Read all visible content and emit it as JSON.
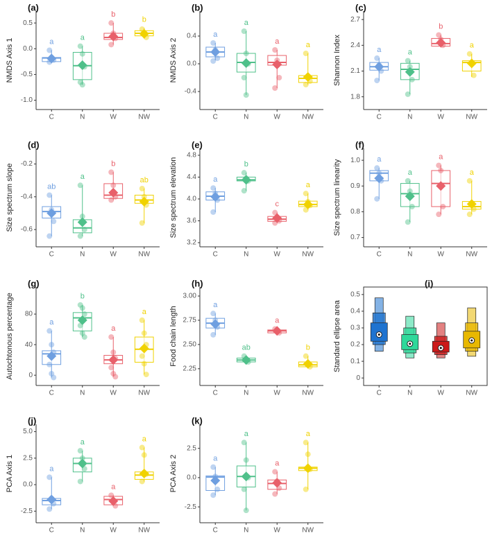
{
  "chart_data": [
    {
      "type": "box",
      "panel": "(a)",
      "ylabel": "NMDS Axis 1",
      "categories": [
        "C",
        "N",
        "W",
        "NW"
      ],
      "colors": [
        "#6f9fe0",
        "#4fc08a",
        "#e8606a",
        "#f0d200"
      ],
      "ylim": [
        -1.1,
        0.65
      ],
      "yticks": [
        {
          "value": -1.0,
          "label": "-1.0"
        },
        {
          "value": -0.5,
          "label": "-0.5"
        },
        {
          "value": 0,
          "label": "0.0"
        },
        {
          "value": 0.5,
          "label": "0.5"
        }
      ],
      "boxes": [
        {
          "min": -0.28,
          "q1": -0.25,
          "median": -0.18,
          "q3": -0.17,
          "max": -0.03,
          "mean": -0.19,
          "letter": "a",
          "points": [
            -0.03,
            -0.17,
            -0.22,
            -0.26
          ]
        },
        {
          "min": -0.7,
          "q1": -0.6,
          "median": -0.33,
          "q3": -0.07,
          "max": 0.05,
          "mean": -0.32,
          "letter": "a",
          "points": [
            0.05,
            -0.1,
            -0.35,
            -0.65,
            -0.7
          ]
        },
        {
          "min": 0.08,
          "q1": 0.18,
          "median": 0.22,
          "q3": 0.3,
          "max": 0.5,
          "mean": 0.24,
          "letter": "b",
          "points": [
            0.5,
            0.3,
            0.2,
            0.08
          ]
        },
        {
          "min": 0.2,
          "q1": 0.25,
          "median": 0.3,
          "q3": 0.35,
          "max": 0.4,
          "mean": 0.29,
          "letter": "b",
          "points": [
            0.38,
            0.3,
            0.22
          ]
        }
      ]
    },
    {
      "type": "box",
      "panel": "(b)",
      "ylabel": "NMDS Axis 2",
      "categories": [
        "C",
        "N",
        "W",
        "NW"
      ],
      "colors": [
        "#6f9fe0",
        "#4fc08a",
        "#e8606a",
        "#f0d200"
      ],
      "ylim": [
        -0.6,
        0.7
      ],
      "yticks": [
        {
          "value": -0.4,
          "label": "-0.4"
        },
        {
          "value": 0,
          "label": "0.0"
        },
        {
          "value": 0.4,
          "label": "0.4"
        }
      ],
      "boxes": [
        {
          "min": 0.05,
          "q1": 0.1,
          "median": 0.17,
          "q3": 0.24,
          "max": 0.3,
          "mean": 0.17,
          "letter": "a",
          "points": [
            0.3,
            0.2,
            0.08,
            0.04
          ]
        },
        {
          "min": -0.45,
          "q1": -0.12,
          "median": 0.02,
          "q3": 0.15,
          "max": 0.47,
          "mean": 0.01,
          "letter": "a",
          "points": [
            0.47,
            0.15,
            0.0,
            -0.2,
            -0.45
          ]
        },
        {
          "min": -0.35,
          "q1": -0.02,
          "median": 0.02,
          "q3": 0.12,
          "max": 0.2,
          "mean": -0.01,
          "letter": "a",
          "points": [
            0.2,
            0.05,
            -0.2,
            -0.35
          ]
        },
        {
          "min": -0.3,
          "q1": -0.27,
          "median": -0.21,
          "q3": -0.17,
          "max": 0.15,
          "mean": -0.19,
          "letter": "a",
          "points": [
            0.15,
            -0.18,
            -0.25,
            -0.3
          ]
        }
      ]
    },
    {
      "type": "box",
      "panel": "(c)",
      "ylabel": "Shannon Index",
      "categories": [
        "C",
        "N",
        "W",
        "NW"
      ],
      "colors": [
        "#6f9fe0",
        "#4fc08a",
        "#e8606a",
        "#f0d200"
      ],
      "ylim": [
        1.7,
        2.75
      ],
      "yticks": [
        1.8,
        2.1,
        2.4,
        2.7
      ],
      "boxes": [
        {
          "min": 1.99,
          "q1": 2.11,
          "median": 2.15,
          "q3": 2.2,
          "max": 2.25,
          "mean": 2.15,
          "letter": "a",
          "points": [
            2.25,
            2.17,
            2.1,
            1.99
          ]
        },
        {
          "min": 1.83,
          "q1": 2.0,
          "median": 2.12,
          "q3": 2.19,
          "max": 2.22,
          "mean": 2.09,
          "letter": "a",
          "points": [
            2.22,
            2.15,
            2.0,
            1.83
          ]
        },
        {
          "min": 2.38,
          "q1": 2.39,
          "median": 2.42,
          "q3": 2.48,
          "max": 2.52,
          "mean": 2.43,
          "letter": "b",
          "points": [
            2.52,
            2.47,
            2.4
          ]
        },
        {
          "min": 2.03,
          "q1": 2.1,
          "median": 2.2,
          "q3": 2.22,
          "max": 2.3,
          "mean": 2.19,
          "letter": "a",
          "points": [
            2.3,
            2.2,
            2.05
          ]
        }
      ]
    },
    {
      "type": "box",
      "panel": "(d)",
      "ylabel": "Size spectrum slope",
      "categories": [
        "C",
        "N",
        "W",
        "NW"
      ],
      "colors": [
        "#6f9fe0",
        "#4fc08a",
        "#e8606a",
        "#f0d200"
      ],
      "ylim": [
        -0.68,
        -0.13
      ],
      "yticks": [
        -0.6,
        -0.4,
        -0.2
      ],
      "boxes": [
        {
          "min": -0.64,
          "q1": -0.53,
          "median": -0.49,
          "q3": -0.46,
          "max": -0.39,
          "mean": -0.5,
          "letter": "ab",
          "points": [
            -0.39,
            -0.48,
            -0.55,
            -0.64
          ]
        },
        {
          "min": -0.64,
          "q1": -0.62,
          "median": -0.59,
          "q3": -0.54,
          "max": -0.33,
          "mean": -0.555,
          "letter": "a",
          "points": [
            -0.33,
            -0.52,
            -0.6,
            -0.64
          ]
        },
        {
          "min": -0.42,
          "q1": -0.41,
          "median": -0.39,
          "q3": -0.32,
          "max": -0.25,
          "mean": -0.375,
          "letter": "b",
          "points": [
            -0.25,
            -0.33,
            -0.4,
            -0.42
          ]
        },
        {
          "min": -0.56,
          "q1": -0.44,
          "median": -0.42,
          "q3": -0.39,
          "max": -0.35,
          "mean": -0.43,
          "letter": "ab",
          "points": [
            -0.35,
            -0.4,
            -0.45,
            -0.56
          ]
        }
      ]
    },
    {
      "type": "box",
      "panel": "(e)",
      "ylabel": "Size spectrum elevation",
      "categories": [
        "C",
        "N",
        "W",
        "NW"
      ],
      "colors": [
        "#6f9fe0",
        "#4fc08a",
        "#e8606a",
        "#f0d200"
      ],
      "ylim": [
        3.2,
        4.85
      ],
      "yticks": [
        3.2,
        3.6,
        {
          "value": 4.0,
          "label": "4.0"
        },
        4.4,
        4.8
      ],
      "boxes": [
        {
          "min": 3.76,
          "q1": 3.98,
          "median": 4.05,
          "q3": 4.13,
          "max": 4.2,
          "mean": 4.04,
          "letter": "a",
          "points": [
            4.2,
            4.1,
            3.98,
            3.76
          ]
        },
        {
          "min": 4.15,
          "q1": 4.33,
          "median": 4.35,
          "q3": 4.4,
          "max": 4.48,
          "mean": 4.35,
          "letter": "b",
          "points": [
            4.48,
            4.38,
            4.33,
            4.15
          ]
        },
        {
          "min": 3.56,
          "q1": 3.59,
          "median": 3.63,
          "q3": 3.68,
          "max": 3.75,
          "mean": 3.65,
          "letter": "c",
          "points": [
            3.75,
            3.66,
            3.6,
            3.56
          ]
        },
        {
          "min": 3.8,
          "q1": 3.86,
          "median": 3.9,
          "q3": 3.96,
          "max": 4.1,
          "mean": 3.9,
          "letter": "a",
          "points": [
            4.1,
            3.95,
            3.88,
            3.8
          ]
        }
      ]
    },
    {
      "type": "box",
      "panel": "(f)",
      "ylabel": "Size spectrum linearity",
      "categories": [
        "C",
        "N",
        "W",
        "NW"
      ],
      "colors": [
        "#6f9fe0",
        "#4fc08a",
        "#e8606a",
        "#f0d200"
      ],
      "ylim": [
        0.68,
        1.03
      ],
      "yticks": [
        0.7,
        0.8,
        0.9,
        {
          "value": 1.0,
          "label": "1.0"
        }
      ],
      "boxes": [
        {
          "min": 0.85,
          "q1": 0.92,
          "median": 0.95,
          "q3": 0.96,
          "max": 0.97,
          "mean": 0.93,
          "letter": "a",
          "points": [
            0.97,
            0.95,
            0.92,
            0.85
          ]
        },
        {
          "min": 0.76,
          "q1": 0.82,
          "median": 0.87,
          "q3": 0.91,
          "max": 0.92,
          "mean": 0.86,
          "letter": "a",
          "points": [
            0.92,
            0.88,
            0.82,
            0.76
          ]
        },
        {
          "min": 0.79,
          "q1": 0.82,
          "median": 0.91,
          "q3": 0.96,
          "max": 0.98,
          "mean": 0.9,
          "letter": "a",
          "points": [
            0.98,
            0.96,
            0.82,
            0.79
          ]
        },
        {
          "min": 0.79,
          "q1": 0.81,
          "median": 0.82,
          "q3": 0.84,
          "max": 0.92,
          "mean": 0.83,
          "letter": "a",
          "points": [
            0.92,
            0.83,
            0.81,
            0.79
          ]
        }
      ]
    },
    {
      "type": "box",
      "panel": "(g)",
      "ylabel": "Autochtonous percentage",
      "categories": [
        "C",
        "N",
        "W",
        "NW"
      ],
      "colors": [
        "#6f9fe0",
        "#4fc08a",
        "#e8606a",
        "#f0d200"
      ],
      "ylim": [
        -8,
        110
      ],
      "yticks": [
        0,
        40,
        80
      ],
      "boxes": [
        {
          "min": -3,
          "q1": 14,
          "median": 28,
          "q3": 32,
          "max": 58,
          "mean": 25,
          "letter": "a",
          "points": [
            58,
            40,
            30,
            14,
            2,
            -3
          ]
        },
        {
          "min": 50,
          "q1": 58,
          "median": 75,
          "q3": 82,
          "max": 92,
          "mean": 72,
          "letter": "b",
          "points": [
            92,
            88,
            80,
            65,
            55,
            50
          ]
        },
        {
          "min": -2,
          "q1": 15,
          "median": 20,
          "q3": 26,
          "max": 50,
          "mean": 20,
          "letter": "a",
          "points": [
            50,
            30,
            22,
            10,
            2,
            -2
          ]
        },
        {
          "min": 1,
          "q1": 17,
          "median": 34,
          "q3": 50,
          "max": 72,
          "mean": 35,
          "letter": "a",
          "points": [
            72,
            55,
            40,
            25,
            15,
            1
          ]
        }
      ]
    },
    {
      "type": "box",
      "panel": "(h)",
      "ylabel": "Food chain length",
      "categories": [
        "C",
        "N",
        "W",
        "NW"
      ],
      "colors": [
        "#6f9fe0",
        "#4fc08a",
        "#e8606a",
        "#f0d200"
      ],
      "ylim": [
        2.12,
        3.05
      ],
      "yticks": [
        2.25,
        {
          "value": 2.5,
          "label": "2.50"
        },
        2.75,
        {
          "value": 3.0,
          "label": "3.00"
        }
      ],
      "boxes": [
        {
          "min": 2.6,
          "q1": 2.67,
          "median": 2.72,
          "q3": 2.77,
          "max": 2.82,
          "mean": 2.71,
          "letter": "a",
          "points": [
            2.82,
            2.75,
            2.68,
            2.6
          ]
        },
        {
          "min": 2.31,
          "q1": 2.32,
          "median": 2.34,
          "q3": 2.36,
          "max": 2.38,
          "mean": 2.34,
          "letter": "ab",
          "points": [
            2.38,
            2.35,
            2.32
          ]
        },
        {
          "min": 2.61,
          "q1": 2.62,
          "median": 2.64,
          "q3": 2.65,
          "max": 2.66,
          "mean": 2.64,
          "letter": "a",
          "points": [
            2.66,
            2.64,
            2.62
          ]
        },
        {
          "min": 2.26,
          "q1": 2.27,
          "median": 2.29,
          "q3": 2.32,
          "max": 2.38,
          "mean": 2.3,
          "letter": "b",
          "points": [
            2.38,
            2.3,
            2.27
          ]
        }
      ]
    },
    {
      "type": "interval",
      "panel": "(i)",
      "ylabel": "Standard ellipse area",
      "categories": [
        "C",
        "N",
        "W",
        "NW"
      ],
      "colors": [
        "#1e73d0",
        "#2fd89a",
        "#cc1a1a",
        "#e8b800"
      ],
      "ylim": [
        -0.02,
        0.52
      ],
      "yticks": [
        0,
        0.1,
        0.2,
        0.3,
        0.4,
        0.5
      ],
      "intervals": [
        {
          "ci95": [
            0.16,
            0.48
          ],
          "ci75": [
            0.2,
            0.39
          ],
          "ci50": [
            0.22,
            0.33
          ],
          "mode": 0.26
        },
        {
          "ci95": [
            0.12,
            0.37
          ],
          "ci75": [
            0.15,
            0.3
          ],
          "ci50": [
            0.17,
            0.26
          ],
          "mode": 0.205
        },
        {
          "ci95": [
            0.12,
            0.33
          ],
          "ci75": [
            0.14,
            0.25
          ],
          "ci50": [
            0.155,
            0.22
          ],
          "mode": 0.18
        },
        {
          "ci95": [
            0.13,
            0.42
          ],
          "ci75": [
            0.16,
            0.33
          ],
          "ci50": [
            0.18,
            0.28
          ],
          "mode": 0.225
        }
      ]
    },
    {
      "type": "box",
      "panel": "(j)",
      "ylabel": "PCA Axis 1",
      "categories": [
        "C",
        "N",
        "W",
        "NW"
      ],
      "colors": [
        "#6f9fe0",
        "#4fc08a",
        "#e8606a",
        "#f0d200"
      ],
      "ylim": [
        -3.2,
        5.3
      ],
      "yticks": [
        -2.5,
        {
          "value": 0,
          "label": "0.0"
        },
        2.5,
        {
          "value": 5,
          "label": "5.0"
        }
      ],
      "boxes": [
        {
          "min": -2.3,
          "q1": -1.9,
          "median": -1.5,
          "q3": -1.3,
          "max": 0.7,
          "mean": -1.4,
          "letter": "a",
          "points": [
            0.7,
            -1.3,
            -1.8,
            -2.3
          ]
        },
        {
          "min": 0.3,
          "q1": 1.2,
          "median": 2.0,
          "q3": 2.5,
          "max": 3.2,
          "mean": 2.0,
          "letter": "a",
          "points": [
            3.2,
            2.5,
            1.5,
            0.3
          ]
        },
        {
          "min": -2.0,
          "q1": -1.9,
          "median": -1.4,
          "q3": -1.1,
          "max": -1.0,
          "mean": -1.55,
          "letter": "a",
          "points": [
            -1.0,
            -1.5,
            -2.0
          ]
        },
        {
          "min": 0.3,
          "q1": 0.5,
          "median": 0.9,
          "q3": 1.2,
          "max": 3.5,
          "mean": 1.05,
          "letter": "a",
          "points": [
            3.5,
            2.8,
            1.0,
            0.3
          ]
        }
      ]
    },
    {
      "type": "box",
      "panel": "(k)",
      "ylabel": "PCA Axis 2",
      "categories": [
        "C",
        "N",
        "W",
        "NW"
      ],
      "colors": [
        "#6f9fe0",
        "#4fc08a",
        "#e8606a",
        "#f0d200"
      ],
      "ylim": [
        -3.5,
        4.2
      ],
      "yticks": [
        -2.5,
        {
          "value": 0,
          "label": "0.0"
        },
        2.5
      ],
      "boxes": [
        {
          "min": -1.5,
          "q1": -1.1,
          "median": 0.05,
          "q3": 0.15,
          "max": 0.9,
          "mean": -0.25,
          "letter": "a",
          "points": [
            0.9,
            0.1,
            -1.0,
            -1.5
          ]
        },
        {
          "min": -2.8,
          "q1": -0.8,
          "median": 0.1,
          "q3": 1.0,
          "max": 3.0,
          "mean": 0.1,
          "letter": "a",
          "points": [
            3.0,
            1.5,
            0.0,
            -1.0,
            -2.8
          ]
        },
        {
          "min": -1.4,
          "q1": -1.0,
          "median": -0.5,
          "q3": -0.2,
          "max": 0.5,
          "mean": -0.45,
          "letter": "a",
          "points": [
            0.5,
            -0.3,
            -0.9,
            -1.4
          ]
        },
        {
          "min": -1.0,
          "q1": 0.6,
          "median": 0.8,
          "q3": 0.9,
          "max": 3.0,
          "mean": 0.8,
          "letter": "a",
          "points": [
            3.0,
            2.0,
            0.7,
            -1.0
          ]
        }
      ]
    }
  ]
}
